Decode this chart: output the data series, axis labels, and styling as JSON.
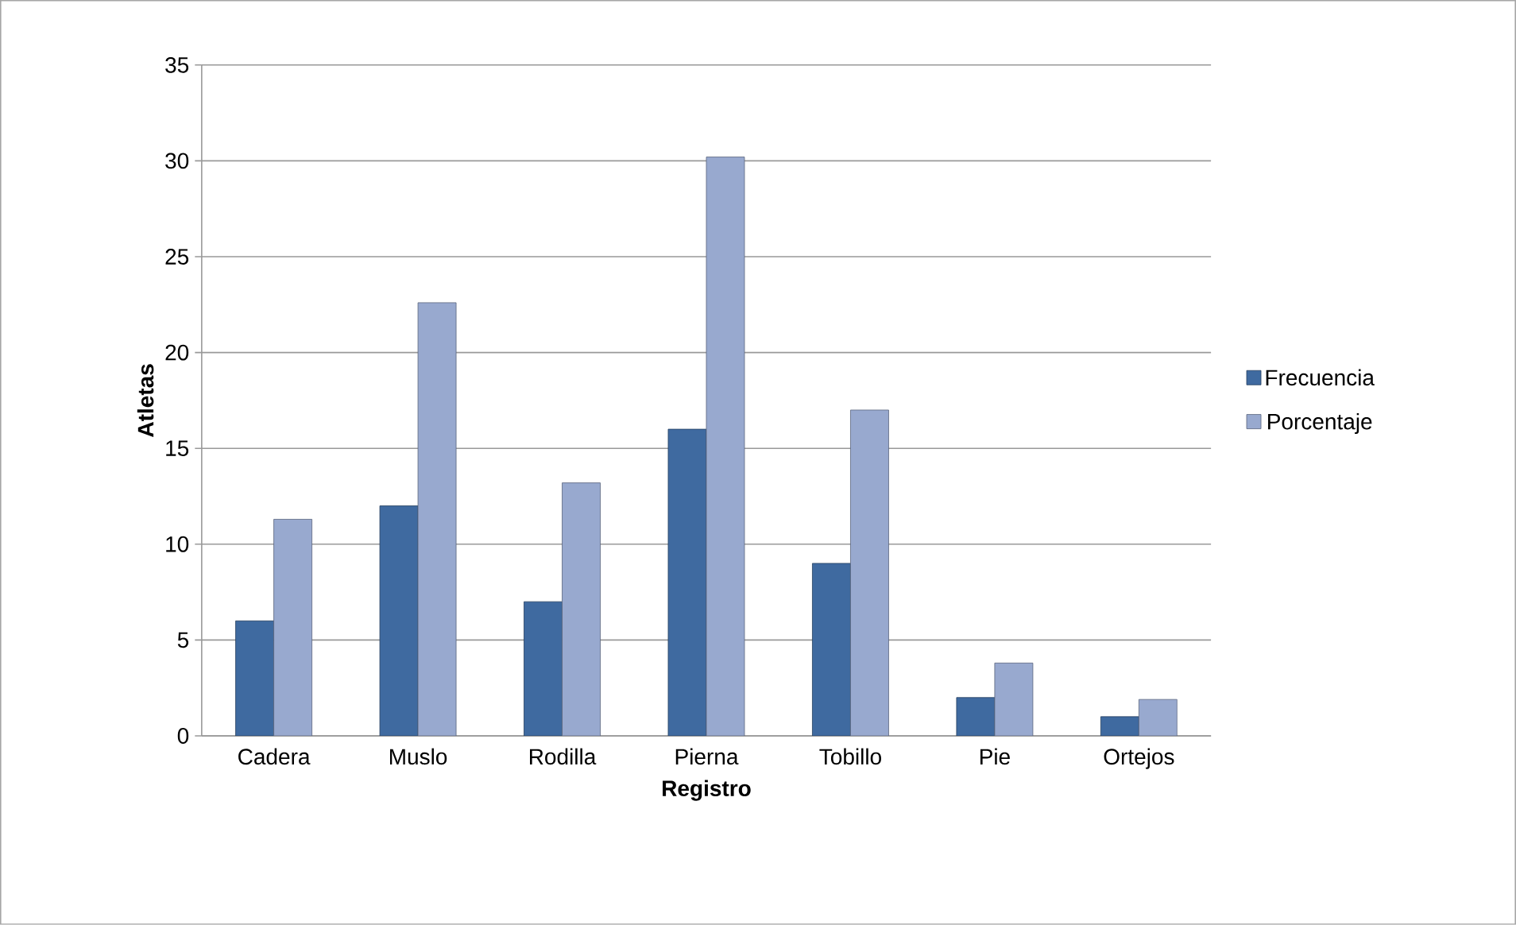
{
  "chart_data": {
    "type": "bar",
    "xlabel": "Registro",
    "ylabel": "Atletas",
    "categories": [
      "Cadera",
      "Muslo",
      "Rodilla",
      "Pierna",
      "Tobillo",
      "Pie",
      "Ortejos"
    ],
    "series": [
      {
        "name": "Frecuencia",
        "color": "#3f6aa0",
        "values": [
          6,
          12,
          7,
          16,
          9,
          2,
          1
        ]
      },
      {
        "name": "Porcentaje",
        "color": "#98a9cf",
        "values": [
          11.3,
          22.6,
          13.2,
          30.2,
          17.0,
          3.8,
          1.9
        ]
      }
    ],
    "ylim": [
      0,
      35
    ],
    "yticks": [
      0,
      5,
      10,
      15,
      20,
      25,
      30,
      35
    ],
    "grid": "y",
    "legend": "right"
  }
}
